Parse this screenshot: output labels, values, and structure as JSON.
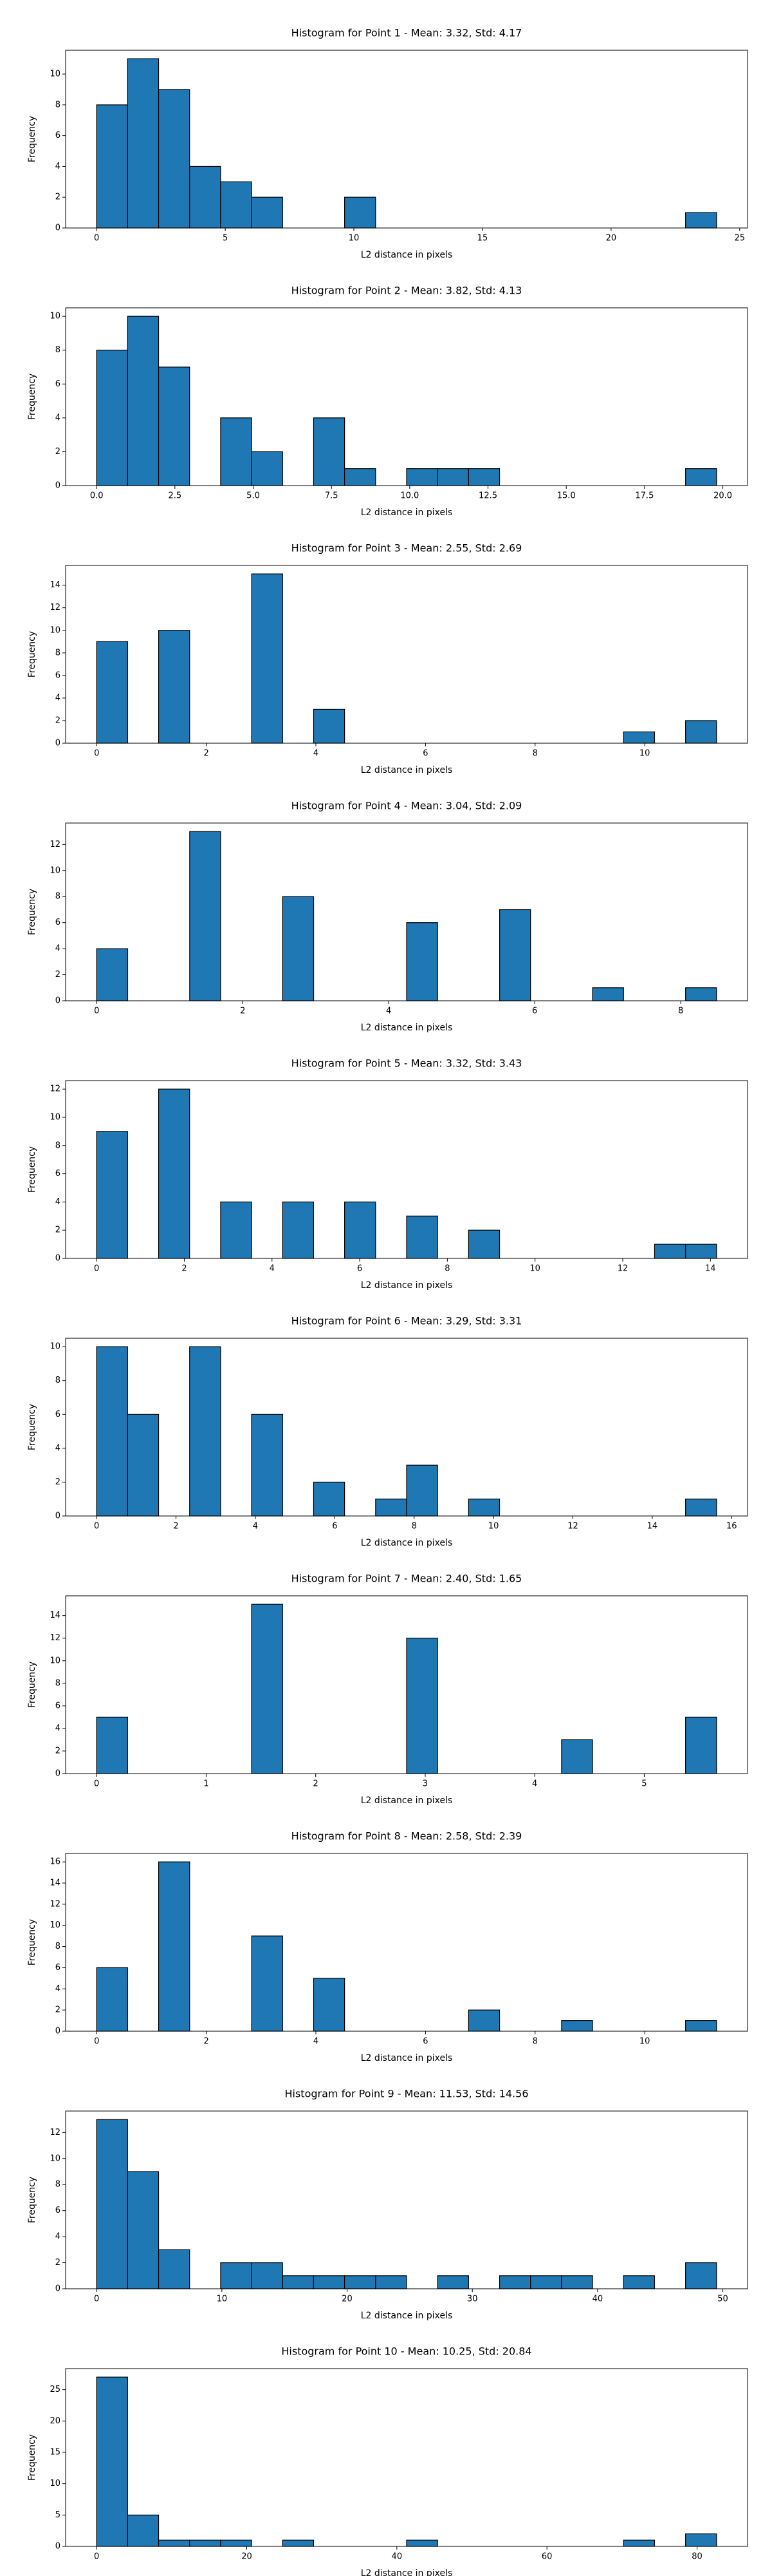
{
  "chart_data": [
    {
      "type": "histogram",
      "title": "Histogram for Point 1 - Mean: 3.32, Std: 4.17",
      "xlabel": "L2 distance in pixels",
      "ylabel": "Frequency",
      "color": "#1f77b4",
      "edgecolor": "#000000",
      "bins": [
        0,
        1.205,
        2.41,
        3.615,
        4.82,
        6.025,
        7.23,
        8.435,
        9.64,
        10.845,
        12.05,
        13.255,
        14.46,
        15.665,
        16.87,
        18.075,
        19.28,
        20.485,
        21.69,
        22.895,
        24.1
      ],
      "values": [
        8,
        11,
        9,
        4,
        3,
        2,
        0,
        0,
        2,
        0,
        0,
        0,
        0,
        0,
        0,
        0,
        0,
        0,
        0,
        1
      ],
      "xlim": [
        -1.205,
        25.305
      ],
      "xticks": [
        0,
        5,
        10,
        15,
        20,
        25
      ],
      "ylim": [
        0,
        11.55
      ],
      "yticks": [
        0,
        2,
        4,
        6,
        8,
        10
      ]
    },
    {
      "type": "histogram",
      "title": "Histogram for Point 2 - Mean: 3.82, Std: 4.13",
      "xlabel": "L2 distance in pixels",
      "ylabel": "Frequency",
      "color": "#1f77b4",
      "edgecolor": "#000000",
      "bins": [
        0,
        0.99,
        1.98,
        2.97,
        3.96,
        4.95,
        5.94,
        6.93,
        7.92,
        8.91,
        9.9,
        10.89,
        11.88,
        12.87,
        13.86,
        14.85,
        15.84,
        16.83,
        17.82,
        18.81,
        19.8
      ],
      "values": [
        8,
        10,
        7,
        0,
        4,
        2,
        0,
        4,
        1,
        0,
        1,
        1,
        1,
        0,
        0,
        0,
        0,
        0,
        0,
        1
      ],
      "xlim": [
        -0.99,
        20.79
      ],
      "xticks": [
        {
          "value": 0,
          "label": "0.0"
        },
        2.5,
        {
          "value": 5,
          "label": "5.0"
        },
        7.5,
        {
          "value": 10,
          "label": "10.0"
        },
        12.5,
        {
          "value": 15,
          "label": "15.0"
        },
        17.5,
        {
          "value": 20,
          "label": "20.0"
        }
      ],
      "ylim": [
        0,
        10.5
      ],
      "yticks": [
        0,
        2,
        4,
        6,
        8,
        10
      ]
    },
    {
      "type": "histogram",
      "title": "Histogram for Point 3 - Mean: 2.55, Std: 2.69",
      "xlabel": "L2 distance in pixels",
      "ylabel": "Frequency",
      "color": "#1f77b4",
      "edgecolor": "#000000",
      "bins": [
        0,
        0.566,
        1.131,
        1.697,
        2.262,
        2.828,
        3.393,
        3.959,
        4.524,
        5.09,
        5.655,
        6.221,
        6.786,
        7.352,
        7.917,
        8.483,
        9.048,
        9.614,
        10.179,
        10.745,
        11.31
      ],
      "values": [
        9,
        0,
        10,
        0,
        0,
        15,
        0,
        3,
        0,
        0,
        0,
        0,
        0,
        0,
        0,
        0,
        0,
        1,
        0,
        2
      ],
      "xlim": [
        -0.566,
        11.876
      ],
      "xticks": [
        0,
        2,
        4,
        6,
        8,
        10
      ],
      "ylim": [
        0,
        15.75
      ],
      "yticks": [
        0,
        2,
        4,
        6,
        8,
        10,
        12,
        14
      ]
    },
    {
      "type": "histogram",
      "title": "Histogram for Point 4 - Mean: 3.04, Std: 2.09",
      "xlabel": "L2 distance in pixels",
      "ylabel": "Frequency",
      "color": "#1f77b4",
      "edgecolor": "#000000",
      "bins": [
        0,
        0.425,
        0.849,
        1.274,
        1.698,
        2.123,
        2.547,
        2.972,
        3.396,
        3.821,
        4.245,
        4.67,
        5.094,
        5.519,
        5.943,
        6.368,
        6.792,
        7.217,
        7.641,
        8.066,
        8.49
      ],
      "values": [
        4,
        0,
        0,
        13,
        0,
        0,
        8,
        0,
        0,
        0,
        6,
        0,
        0,
        7,
        0,
        0,
        1,
        0,
        0,
        1
      ],
      "xlim": [
        -0.425,
        8.915
      ],
      "xticks": [
        0,
        2,
        4,
        6,
        8
      ],
      "ylim": [
        0,
        13.65
      ],
      "yticks": [
        0,
        2,
        4,
        6,
        8,
        10,
        12
      ]
    },
    {
      "type": "histogram",
      "title": "Histogram for Point 5 - Mean: 3.32, Std: 3.43",
      "xlabel": "L2 distance in pixels",
      "ylabel": "Frequency",
      "color": "#1f77b4",
      "edgecolor": "#000000",
      "bins": [
        0,
        0.707,
        1.414,
        2.121,
        2.828,
        3.535,
        4.242,
        4.949,
        5.656,
        6.363,
        7.07,
        7.777,
        8.484,
        9.191,
        9.898,
        10.605,
        11.312,
        12.019,
        12.726,
        13.433,
        14.14
      ],
      "values": [
        9,
        0,
        12,
        0,
        4,
        0,
        4,
        0,
        4,
        0,
        3,
        0,
        2,
        0,
        0,
        0,
        0,
        0,
        1,
        1
      ],
      "xlim": [
        -0.707,
        14.847
      ],
      "xticks": [
        0,
        2,
        4,
        6,
        8,
        10,
        12,
        14
      ],
      "ylim": [
        0,
        12.6
      ],
      "yticks": [
        0,
        2,
        4,
        6,
        8,
        10,
        12
      ]
    },
    {
      "type": "histogram",
      "title": "Histogram for Point 6 - Mean: 3.29, Std: 3.31",
      "xlabel": "L2 distance in pixels",
      "ylabel": "Frequency",
      "color": "#1f77b4",
      "edgecolor": "#000000",
      "bins": [
        0,
        0.781,
        1.562,
        2.343,
        3.124,
        3.905,
        4.686,
        5.467,
        6.248,
        7.029,
        7.81,
        8.591,
        9.372,
        10.153,
        10.934,
        11.715,
        12.496,
        13.277,
        14.058,
        14.839,
        15.62
      ],
      "values": [
        10,
        6,
        0,
        10,
        0,
        6,
        0,
        2,
        0,
        1,
        3,
        0,
        1,
        0,
        0,
        0,
        0,
        0,
        0,
        1
      ],
      "xlim": [
        -0.781,
        16.401
      ],
      "xticks": [
        0,
        2,
        4,
        6,
        8,
        10,
        12,
        14,
        16
      ],
      "ylim": [
        0,
        10.5
      ],
      "yticks": [
        0,
        2,
        4,
        6,
        8,
        10
      ]
    },
    {
      "type": "histogram",
      "title": "Histogram for Point 7 - Mean: 2.40, Std: 1.65",
      "xlabel": "L2 distance in pixels",
      "ylabel": "Frequency",
      "color": "#1f77b4",
      "edgecolor": "#000000",
      "bins": [
        0,
        0.283,
        0.566,
        0.849,
        1.132,
        1.415,
        1.698,
        1.981,
        2.264,
        2.547,
        2.83,
        3.113,
        3.396,
        3.679,
        3.962,
        4.245,
        4.528,
        4.811,
        5.094,
        5.377,
        5.66
      ],
      "values": [
        5,
        0,
        0,
        0,
        0,
        15,
        0,
        0,
        0,
        0,
        12,
        0,
        0,
        0,
        0,
        3,
        0,
        0,
        0,
        5
      ],
      "xlim": [
        -0.283,
        5.943
      ],
      "xticks": [
        0,
        1,
        2,
        3,
        4,
        5
      ],
      "ylim": [
        0,
        15.75
      ],
      "yticks": [
        0,
        2,
        4,
        6,
        8,
        10,
        12,
        14
      ]
    },
    {
      "type": "histogram",
      "title": "Histogram for Point 8 - Mean: 2.58, Std: 2.39",
      "xlabel": "L2 distance in pixels",
      "ylabel": "Frequency",
      "color": "#1f77b4",
      "edgecolor": "#000000",
      "bins": [
        0,
        0.566,
        1.131,
        1.697,
        2.262,
        2.828,
        3.393,
        3.959,
        4.524,
        5.09,
        5.655,
        6.221,
        6.786,
        7.352,
        7.917,
        8.483,
        9.048,
        9.614,
        10.179,
        10.745,
        11.31
      ],
      "values": [
        6,
        0,
        16,
        0,
        0,
        9,
        0,
        5,
        0,
        0,
        0,
        0,
        2,
        0,
        0,
        1,
        0,
        0,
        0,
        1
      ],
      "xlim": [
        -0.566,
        11.876
      ],
      "xticks": [
        0,
        2,
        4,
        6,
        8,
        10
      ],
      "ylim": [
        0,
        16.8
      ],
      "yticks": [
        0,
        2,
        4,
        6,
        8,
        10,
        12,
        14,
        16
      ]
    },
    {
      "type": "histogram",
      "title": "Histogram for Point 9 - Mean: 11.53, Std: 14.56",
      "xlabel": "L2 distance in pixels",
      "ylabel": "Frequency",
      "color": "#1f77b4",
      "edgecolor": "#000000",
      "bins": [
        0,
        2.475,
        4.95,
        7.425,
        9.9,
        12.375,
        14.85,
        17.325,
        19.8,
        22.275,
        24.75,
        27.225,
        29.7,
        32.175,
        34.65,
        37.125,
        39.6,
        42.075,
        44.55,
        47.025,
        49.5
      ],
      "values": [
        13,
        9,
        3,
        0,
        2,
        2,
        1,
        1,
        1,
        1,
        0,
        1,
        0,
        1,
        1,
        1,
        0,
        1,
        0,
        2
      ],
      "xlim": [
        -2.475,
        51.975
      ],
      "xticks": [
        0,
        10,
        20,
        30,
        40,
        50
      ],
      "ylim": [
        0,
        13.65
      ],
      "yticks": [
        0,
        2,
        4,
        6,
        8,
        10,
        12
      ]
    },
    {
      "type": "histogram",
      "title": "Histogram for Point 10 - Mean: 10.25, Std: 20.84",
      "xlabel": "L2 distance in pixels",
      "ylabel": "Frequency",
      "color": "#1f77b4",
      "edgecolor": "#000000",
      "bins": [
        0,
        4.13,
        8.26,
        12.39,
        16.52,
        20.65,
        24.78,
        28.91,
        33.04,
        37.17,
        41.3,
        45.43,
        49.56,
        53.69,
        57.82,
        61.95,
        66.08,
        70.21,
        74.34,
        78.47,
        82.6
      ],
      "values": [
        27,
        5,
        1,
        1,
        1,
        0,
        1,
        0,
        0,
        0,
        1,
        0,
        0,
        0,
        0,
        0,
        0,
        1,
        0,
        2
      ],
      "xlim": [
        -4.13,
        86.73
      ],
      "xticks": [
        0,
        20,
        40,
        60,
        80
      ],
      "ylim": [
        0,
        28.35
      ],
      "yticks": [
        0,
        5,
        10,
        15,
        20,
        25
      ]
    }
  ]
}
